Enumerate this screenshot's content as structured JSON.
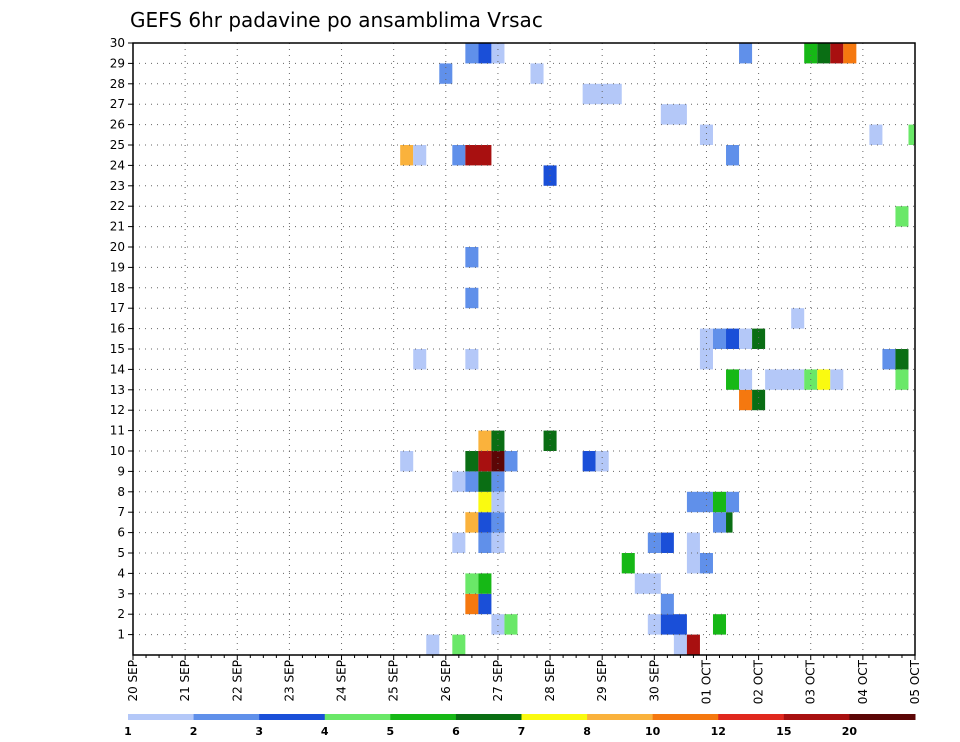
{
  "chart_data": {
    "type": "heatmap",
    "title": "GEFS 6hr padavine po ansamblima Vrsac",
    "x_tick_labels": [
      "20 SEP",
      "21 SEP",
      "22 SEP",
      "23 SEP",
      "24 SEP",
      "25 SEP",
      "26 SEP",
      "27 SEP",
      "28 SEP",
      "29 SEP",
      "30 SEP",
      "01 OCT",
      "02 OCT",
      "03 OCT",
      "04 OCT",
      "05 OCT"
    ],
    "y_tick_labels": [
      "1",
      "2",
      "3",
      "4",
      "5",
      "6",
      "7",
      "8",
      "9",
      "10",
      "11",
      "12",
      "13",
      "14",
      "15",
      "16",
      "17",
      "18",
      "19",
      "20",
      "21",
      "22",
      "23",
      "24",
      "25",
      "26",
      "27",
      "28",
      "29",
      "30"
    ],
    "ylim": [
      0,
      30
    ],
    "time_steps_per_day": 4,
    "grid": true,
    "colorbar": {
      "levels": [
        "1",
        "2",
        "3",
        "4",
        "5",
        "6",
        "7",
        "8",
        "10",
        "12",
        "15",
        "20"
      ],
      "colors": [
        "#b4c8f8",
        "#6090ea",
        "#1a4fd8",
        "#6ae868",
        "#16b816",
        "#0a6e14",
        "#fafa10",
        "#fab23c",
        "#f5780f",
        "#e0281e",
        "#a81010",
        "#5c0606"
      ]
    },
    "cells": [
      {
        "y": 0,
        "t": [
          22.5,
          23.5
        ],
        "bin": 0
      },
      {
        "y": 0,
        "t": [
          24.5,
          25.5
        ],
        "bin": 3
      },
      {
        "y": 0,
        "t": [
          41.5,
          42.5
        ],
        "bin": 0
      },
      {
        "y": 0,
        "t": [
          42.5,
          43.5
        ],
        "bin": 10
      },
      {
        "y": 1,
        "t": [
          27.5,
          28.5
        ],
        "bin": 0
      },
      {
        "y": 1,
        "t": [
          28.5,
          29.5
        ],
        "bin": 3
      },
      {
        "y": 1,
        "t": [
          39.5,
          40.5
        ],
        "bin": 0
      },
      {
        "y": 1,
        "t": [
          40.5,
          42.5
        ],
        "bin": 2
      },
      {
        "y": 1,
        "t": [
          44.5,
          45.5
        ],
        "bin": 4
      },
      {
        "y": 2,
        "t": [
          25.5,
          26.5
        ],
        "bin": 8
      },
      {
        "y": 2,
        "t": [
          26.5,
          27.5
        ],
        "bin": 2
      },
      {
        "y": 2,
        "t": [
          40.5,
          41.5
        ],
        "bin": 1
      },
      {
        "y": 3,
        "t": [
          25.5,
          26.5
        ],
        "bin": 3
      },
      {
        "y": 3,
        "t": [
          26.5,
          27.5
        ],
        "bin": 4
      },
      {
        "y": 3,
        "t": [
          38.5,
          40.5
        ],
        "bin": 0
      },
      {
        "y": 4,
        "t": [
          37.5,
          38.5
        ],
        "bin": 4
      },
      {
        "y": 4,
        "t": [
          42.5,
          43.5
        ],
        "bin": 0
      },
      {
        "y": 4,
        "t": [
          43.5,
          44.5
        ],
        "bin": 1
      },
      {
        "y": 5,
        "t": [
          24.5,
          25.5
        ],
        "bin": 0
      },
      {
        "y": 5,
        "t": [
          26.5,
          27.5
        ],
        "bin": 1
      },
      {
        "y": 5,
        "t": [
          27.5,
          28.5
        ],
        "bin": 0
      },
      {
        "y": 5,
        "t": [
          39.5,
          40.5
        ],
        "bin": 1
      },
      {
        "y": 5,
        "t": [
          40.5,
          41.5
        ],
        "bin": 2
      },
      {
        "y": 5,
        "t": [
          42.5,
          43.5
        ],
        "bin": 0
      },
      {
        "y": 6,
        "t": [
          25.5,
          26.5
        ],
        "bin": 7
      },
      {
        "y": 6,
        "t": [
          26.5,
          27.5
        ],
        "bin": 2
      },
      {
        "y": 6,
        "t": [
          27.5,
          28.5
        ],
        "bin": 1
      },
      {
        "y": 6,
        "t": [
          44.5,
          45.5
        ],
        "bin": 1
      },
      {
        "y": 6,
        "t": [
          45.5,
          46
        ],
        "bin": 5
      },
      {
        "y": 7,
        "t": [
          26.5,
          27.5
        ],
        "bin": 6
      },
      {
        "y": 7,
        "t": [
          27.5,
          28.5
        ],
        "bin": 0
      },
      {
        "y": 7,
        "t": [
          42.5,
          44.5
        ],
        "bin": 1
      },
      {
        "y": 7,
        "t": [
          44.5,
          45.5
        ],
        "bin": 4
      },
      {
        "y": 7,
        "t": [
          45.5,
          46.5
        ],
        "bin": 1
      },
      {
        "y": 8,
        "t": [
          24.5,
          25.5
        ],
        "bin": 0
      },
      {
        "y": 8,
        "t": [
          25.5,
          26.5
        ],
        "bin": 1
      },
      {
        "y": 8,
        "t": [
          26.5,
          27.5
        ],
        "bin": 5
      },
      {
        "y": 8,
        "t": [
          27.5,
          28.5
        ],
        "bin": 1
      },
      {
        "y": 9,
        "t": [
          20.5,
          21.5
        ],
        "bin": 0
      },
      {
        "y": 9,
        "t": [
          25.5,
          26.5
        ],
        "bin": 5
      },
      {
        "y": 9,
        "t": [
          26.5,
          27.5
        ],
        "bin": 10
      },
      {
        "y": 9,
        "t": [
          27.5,
          28.5
        ],
        "bin": 11
      },
      {
        "y": 9,
        "t": [
          28.5,
          29.5
        ],
        "bin": 1
      },
      {
        "y": 9,
        "t": [
          34.5,
          35.5
        ],
        "bin": 2
      },
      {
        "y": 9,
        "t": [
          35.5,
          36.5
        ],
        "bin": 0
      },
      {
        "y": 10,
        "t": [
          26.5,
          27.5
        ],
        "bin": 7
      },
      {
        "y": 10,
        "t": [
          27.5,
          28.5
        ],
        "bin": 5
      },
      {
        "y": 10,
        "t": [
          31.5,
          32.5
        ],
        "bin": 5
      },
      {
        "y": 12,
        "t": [
          46.5,
          47.5
        ],
        "bin": 8
      },
      {
        "y": 12,
        "t": [
          47.5,
          48.5
        ],
        "bin": 5
      },
      {
        "y": 13,
        "t": [
          45.5,
          46.5
        ],
        "bin": 4
      },
      {
        "y": 13,
        "t": [
          46.5,
          47.5
        ],
        "bin": 0
      },
      {
        "y": 13,
        "t": [
          48.5,
          51.5
        ],
        "bin": 0
      },
      {
        "y": 13,
        "t": [
          51.5,
          52.5
        ],
        "bin": 3
      },
      {
        "y": 13,
        "t": [
          52.5,
          53.5
        ],
        "bin": 6
      },
      {
        "y": 13,
        "t": [
          53.5,
          54.5
        ],
        "bin": 0
      },
      {
        "y": 13,
        "t": [
          58.5,
          59.5
        ],
        "bin": 3
      },
      {
        "y": 14,
        "t": [
          21.5,
          22.5
        ],
        "bin": 0
      },
      {
        "y": 14,
        "t": [
          25.5,
          26.5
        ],
        "bin": 0
      },
      {
        "y": 14,
        "t": [
          43.5,
          44.5
        ],
        "bin": 0
      },
      {
        "y": 14,
        "t": [
          57.5,
          58.5
        ],
        "bin": 1
      },
      {
        "y": 14,
        "t": [
          58.5,
          59.5
        ],
        "bin": 5
      },
      {
        "y": 15,
        "t": [
          43.5,
          44.5
        ],
        "bin": 0
      },
      {
        "y": 15,
        "t": [
          44.5,
          45.5
        ],
        "bin": 1
      },
      {
        "y": 15,
        "t": [
          45.5,
          46.5
        ],
        "bin": 2
      },
      {
        "y": 15,
        "t": [
          46.5,
          47.5
        ],
        "bin": 0
      },
      {
        "y": 15,
        "t": [
          47.5,
          48.5
        ],
        "bin": 5
      },
      {
        "y": 16,
        "t": [
          50.5,
          51.5
        ],
        "bin": 0
      },
      {
        "y": 17,
        "t": [
          25.5,
          26.5
        ],
        "bin": 1
      },
      {
        "y": 19,
        "t": [
          25.5,
          26.5
        ],
        "bin": 1
      },
      {
        "y": 21,
        "t": [
          58.5,
          59.5
        ],
        "bin": 3
      },
      {
        "y": 23,
        "t": [
          31.5,
          32.5
        ],
        "bin": 2
      },
      {
        "y": 24,
        "t": [
          20.5,
          21.5
        ],
        "bin": 7
      },
      {
        "y": 24,
        "t": [
          21.5,
          22.5
        ],
        "bin": 0
      },
      {
        "y": 24,
        "t": [
          24.5,
          25.5
        ],
        "bin": 1
      },
      {
        "y": 24,
        "t": [
          25.5,
          27.5
        ],
        "bin": 10
      },
      {
        "y": 24,
        "t": [
          45.5,
          46.5
        ],
        "bin": 1
      },
      {
        "y": 25,
        "t": [
          43.5,
          44.5
        ],
        "bin": 0
      },
      {
        "y": 25,
        "t": [
          56.5,
          57.5
        ],
        "bin": 0
      },
      {
        "y": 25,
        "t": [
          59.5,
          60
        ],
        "bin": 3
      },
      {
        "y": 26,
        "t": [
          40.5,
          42.5
        ],
        "bin": 0
      },
      {
        "y": 27,
        "t": [
          34.5,
          37.5
        ],
        "bin": 0
      },
      {
        "y": 28,
        "t": [
          23.5,
          24.5
        ],
        "bin": 1
      },
      {
        "y": 28,
        "t": [
          30.5,
          31.5
        ],
        "bin": 0
      },
      {
        "y": 29,
        "t": [
          25.5,
          26.5
        ],
        "bin": 1
      },
      {
        "y": 29,
        "t": [
          26.5,
          27.5
        ],
        "bin": 2
      },
      {
        "y": 29,
        "t": [
          27.5,
          28.5
        ],
        "bin": 0
      },
      {
        "y": 29,
        "t": [
          46.5,
          47.5
        ],
        "bin": 1
      },
      {
        "y": 29,
        "t": [
          51.5,
          52.5
        ],
        "bin": 4
      },
      {
        "y": 29,
        "t": [
          52.5,
          53.5
        ],
        "bin": 5
      },
      {
        "y": 29,
        "t": [
          53.5,
          54.5
        ],
        "bin": 10
      },
      {
        "y": 29,
        "t": [
          54.5,
          55.5
        ],
        "bin": 8
      }
    ]
  }
}
